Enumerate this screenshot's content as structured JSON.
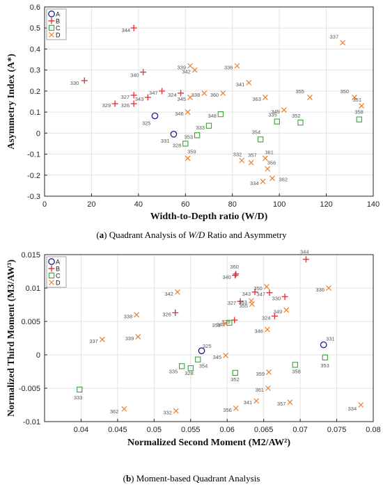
{
  "chart_data": [
    {
      "type": "scatter",
      "id": "A",
      "caption": {
        "prefix": "(",
        "letter": "a",
        "suffix": ") Quadrant Analysis of ",
        "italic": "W/D",
        "rest": " Ratio and Asymmetry"
      },
      "xlabel": "Width-to-Depth  ratio  (W/D)",
      "ylabel": "Asymmetry  Index  (A*)",
      "xlim": [
        0,
        140
      ],
      "ylim": [
        -0.3,
        0.6
      ],
      "xticks": [
        "0",
        "20",
        "40",
        "60",
        "80",
        "100",
        "120",
        "140"
      ],
      "yticks": [
        "-0.3",
        "-0.2",
        "-0.1",
        "0",
        "0.1",
        "0.2",
        "0.3",
        "0.4",
        "0.5",
        "0.6"
      ],
      "grid": true,
      "legend_position": "top-left",
      "series": [
        {
          "name": "A",
          "marker": "circle",
          "color": "#1a1a8c",
          "points": [
            {
              "x": 47,
              "y": 0.082,
              "label": "325"
            },
            {
              "x": 55,
              "y": -0.005,
              "label": "331"
            }
          ]
        },
        {
          "name": "B",
          "marker": "plus",
          "color": "#e8333a",
          "points": [
            {
              "x": 38,
              "y": 0.5,
              "label": "344"
            },
            {
              "x": 17,
              "y": 0.25,
              "label": "330"
            },
            {
              "x": 42,
              "y": 0.29,
              "label": "340"
            },
            {
              "x": 50,
              "y": 0.2,
              "label": "347"
            },
            {
              "x": 58,
              "y": 0.19,
              "label": "324"
            },
            {
              "x": 44,
              "y": 0.17,
              "label": "343"
            },
            {
              "x": 38,
              "y": 0.18,
              "label": "327"
            },
            {
              "x": 38,
              "y": 0.14,
              "label": "326"
            },
            {
              "x": 30,
              "y": 0.14,
              "label": "329"
            }
          ]
        },
        {
          "name": "C",
          "marker": "square",
          "color": "#3aa03a",
          "points": [
            {
              "x": 75,
              "y": 0.09,
              "label": "348"
            },
            {
              "x": 70,
              "y": 0.035,
              "label": "333"
            },
            {
              "x": 65,
              "y": -0.01,
              "label": "353"
            },
            {
              "x": 60,
              "y": -0.05,
              "label": "328"
            },
            {
              "x": 92,
              "y": -0.03,
              "label": "354"
            },
            {
              "x": 99,
              "y": 0.055,
              "label": "335"
            },
            {
              "x": 109,
              "y": 0.05,
              "label": "352"
            },
            {
              "x": 134,
              "y": 0.065,
              "label": "358"
            }
          ]
        },
        {
          "name": "D",
          "marker": "x",
          "color": "#f07c24",
          "points": [
            {
              "x": 127,
              "y": 0.43,
              "label": "337"
            },
            {
              "x": 62,
              "y": 0.32,
              "label": "339"
            },
            {
              "x": 64,
              "y": 0.3,
              "label": "342"
            },
            {
              "x": 82,
              "y": 0.32,
              "label": "336"
            },
            {
              "x": 76,
              "y": 0.19,
              "label": "360"
            },
            {
              "x": 87,
              "y": 0.24,
              "label": "341"
            },
            {
              "x": 68,
              "y": 0.19,
              "label": "338"
            },
            {
              "x": 62,
              "y": 0.17,
              "label": "345"
            },
            {
              "x": 94,
              "y": 0.17,
              "label": "363"
            },
            {
              "x": 61,
              "y": 0.1,
              "label": "346"
            },
            {
              "x": 102,
              "y": 0.11,
              "label": "349"
            },
            {
              "x": 113,
              "y": 0.17,
              "label": "355"
            },
            {
              "x": 132,
              "y": 0.17,
              "label": "350"
            },
            {
              "x": 135,
              "y": 0.13,
              "label": "351"
            },
            {
              "x": 61,
              "y": -0.12,
              "label": "359"
            },
            {
              "x": 84,
              "y": -0.13,
              "label": "332"
            },
            {
              "x": 88,
              "y": -0.14,
              "label": "357"
            },
            {
              "x": 94,
              "y": -0.12,
              "label": "361"
            },
            {
              "x": 95,
              "y": -0.17,
              "label": "356"
            },
            {
              "x": 97,
              "y": -0.215,
              "label": "362"
            },
            {
              "x": 93,
              "y": -0.23,
              "label": "334"
            }
          ]
        }
      ]
    },
    {
      "type": "scatter",
      "id": "B",
      "caption": {
        "prefix": "(",
        "letter": "b",
        "suffix": ") Moment-based Quadrant Analysis",
        "italic": "",
        "rest": ""
      },
      "xlabel": "Normalized Second  Moment  (M2/AW²)",
      "ylabel": "Normalized  Third  Moment  (M3/AW³)",
      "xlim": [
        0.035,
        0.08
      ],
      "ylim": [
        -0.01,
        0.015
      ],
      "xticks": [
        "0.04",
        "0.045",
        "0.05",
        "0.055",
        "0.06",
        "0.065",
        "0.07",
        "0.075",
        "0.08"
      ],
      "yticks": [
        "-0.01",
        "-0.005",
        "0",
        "0.005",
        "0.01",
        "0.015"
      ],
      "grid": true,
      "legend_position": "top-left",
      "series": [
        {
          "name": "A",
          "marker": "circle",
          "color": "#1a1a8c",
          "points": [
            {
              "x": 0.0565,
              "y": 0.0006,
              "label": "325"
            },
            {
              "x": 0.0732,
              "y": 0.0015,
              "label": "331"
            }
          ]
        },
        {
          "name": "B",
          "marker": "plus",
          "color": "#e8333a",
          "points": [
            {
              "x": 0.0708,
              "y": 0.0143,
              "label": "344"
            },
            {
              "x": 0.0612,
              "y": 0.0121,
              "label": "360"
            },
            {
              "x": 0.0611,
              "y": 0.0119,
              "label": "340"
            },
            {
              "x": 0.0638,
              "y": 0.0094,
              "label": "343"
            },
            {
              "x": 0.0658,
              "y": 0.0093,
              "label": "347"
            },
            {
              "x": 0.0679,
              "y": 0.0087,
              "label": "330"
            },
            {
              "x": 0.0618,
              "y": 0.008,
              "label": "327"
            },
            {
              "x": 0.0529,
              "y": 0.0063,
              "label": "326"
            },
            {
              "x": 0.061,
              "y": 0.0052,
              "label": "329"
            },
            {
              "x": 0.0665,
              "y": 0.0058,
              "label": "324"
            }
          ]
        },
        {
          "name": "C",
          "marker": "square",
          "color": "#3aa03a",
          "points": [
            {
              "x": 0.0603,
              "y": 0.0048,
              "label": "348"
            },
            {
              "x": 0.0398,
              "y": -0.0052,
              "label": "333"
            },
            {
              "x": 0.0538,
              "y": -0.0017,
              "label": "335"
            },
            {
              "x": 0.055,
              "y": -0.002,
              "label": "328"
            },
            {
              "x": 0.056,
              "y": -0.0007,
              "label": "354"
            },
            {
              "x": 0.0611,
              "y": -0.0027,
              "label": "352"
            },
            {
              "x": 0.0693,
              "y": -0.0015,
              "label": "358"
            },
            {
              "x": 0.0734,
              "y": -0.0004,
              "label": "353"
            }
          ]
        },
        {
          "name": "D",
          "marker": "x",
          "color": "#f07c24",
          "points": [
            {
              "x": 0.0654,
              "y": 0.0102,
              "label": "350"
            },
            {
              "x": 0.0633,
              "y": 0.0081,
              "label": "363"
            },
            {
              "x": 0.0634,
              "y": 0.0076,
              "label": "355"
            },
            {
              "x": 0.0739,
              "y": 0.01,
              "label": "336"
            },
            {
              "x": 0.0532,
              "y": 0.0094,
              "label": "342"
            },
            {
              "x": 0.0476,
              "y": 0.006,
              "label": "338"
            },
            {
              "x": 0.0478,
              "y": 0.0027,
              "label": "339"
            },
            {
              "x": 0.0429,
              "y": 0.0023,
              "label": "337"
            },
            {
              "x": 0.0597,
              "y": 0.0047,
              "label": "351"
            },
            {
              "x": 0.0681,
              "y": 0.0067,
              "label": "349"
            },
            {
              "x": 0.0655,
              "y": 0.0038,
              "label": "346"
            },
            {
              "x": 0.0598,
              "y": -0.0001,
              "label": "345"
            },
            {
              "x": 0.0657,
              "y": -0.0026,
              "label": "359"
            },
            {
              "x": 0.0656,
              "y": -0.005,
              "label": "361"
            },
            {
              "x": 0.0459,
              "y": -0.0081,
              "label": "362"
            },
            {
              "x": 0.053,
              "y": -0.0084,
              "label": "332"
            },
            {
              "x": 0.0612,
              "y": -0.008,
              "label": "356"
            },
            {
              "x": 0.064,
              "y": -0.0069,
              "label": "341"
            },
            {
              "x": 0.0686,
              "y": -0.0071,
              "label": "357"
            },
            {
              "x": 0.0783,
              "y": -0.0075,
              "label": "334"
            }
          ]
        }
      ]
    }
  ]
}
